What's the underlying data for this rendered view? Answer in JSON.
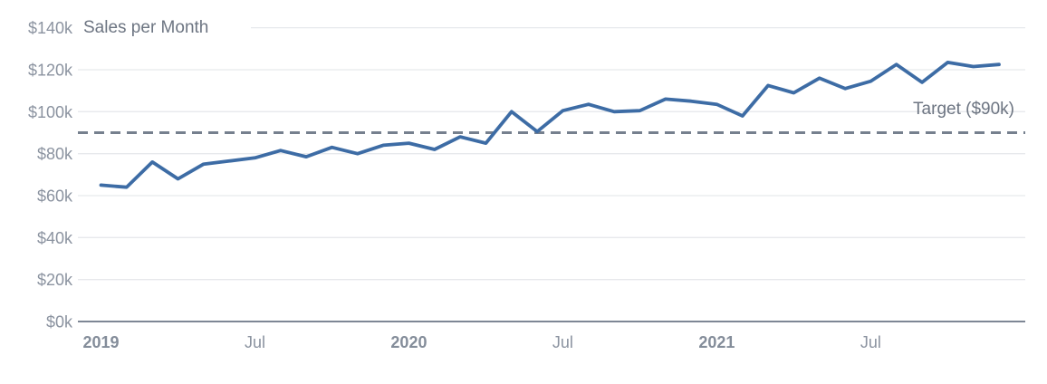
{
  "chart_data": {
    "type": "line",
    "title": "Sales per Month",
    "xlabel": "",
    "ylabel": "",
    "ylim": [
      0,
      140
    ],
    "grid": true,
    "legend": "none",
    "y_ticks": [
      {
        "value": 0,
        "label": "$0k"
      },
      {
        "value": 20,
        "label": "$20k"
      },
      {
        "value": 40,
        "label": "$40k"
      },
      {
        "value": 60,
        "label": "$60k"
      },
      {
        "value": 80,
        "label": "$80k"
      },
      {
        "value": 100,
        "label": "$100k"
      },
      {
        "value": 120,
        "label": "$120k"
      },
      {
        "value": 140,
        "label": "$140k"
      }
    ],
    "x_ticks": [
      {
        "month_index": 0,
        "label": "2019",
        "bold": true
      },
      {
        "month_index": 6,
        "label": "Jul",
        "bold": false
      },
      {
        "month_index": 12,
        "label": "2020",
        "bold": true
      },
      {
        "month_index": 18,
        "label": "Jul",
        "bold": false
      },
      {
        "month_index": 24,
        "label": "2021",
        "bold": true
      },
      {
        "month_index": 30,
        "label": "Jul",
        "bold": false
      }
    ],
    "months": [
      "Jan 2019",
      "Feb 2019",
      "Mar 2019",
      "Apr 2019",
      "May 2019",
      "Jun 2019",
      "Jul 2019",
      "Aug 2019",
      "Sep 2019",
      "Oct 2019",
      "Nov 2019",
      "Dec 2019",
      "Jan 2020",
      "Feb 2020",
      "Mar 2020",
      "Apr 2020",
      "May 2020",
      "Jun 2020",
      "Jul 2020",
      "Aug 2020",
      "Sep 2020",
      "Oct 2020",
      "Nov 2020",
      "Dec 2020",
      "Jan 2021",
      "Feb 2021",
      "Mar 2021",
      "Apr 2021",
      "May 2021",
      "Jun 2021",
      "Jul 2021",
      "Aug 2021",
      "Sep 2021",
      "Oct 2021",
      "Nov 2021",
      "Dec 2021"
    ],
    "series": [
      {
        "name": "Sales",
        "color": "#3d6ca5",
        "values": [
          65,
          64,
          76,
          68,
          75,
          76.5,
          78,
          81.5,
          78.5,
          83,
          80,
          84,
          85,
          82,
          88,
          85,
          100,
          90.5,
          100.5,
          103.5,
          100,
          100.5,
          106,
          105,
          103.5,
          98,
          112.5,
          109,
          116,
          111,
          114.5,
          122.5,
          114,
          123.5,
          121.5,
          122.5
        ]
      }
    ],
    "target": {
      "label": "Target ($90k)",
      "value": 90,
      "style": "dashed",
      "color": "#76808e"
    },
    "colors": {
      "line": "#3d6ca5",
      "gridline": "#e7e9ec",
      "axis_line": "#7e8795",
      "tick_label": "#8b93a0",
      "year_label": "#848d9a",
      "title_text": "#6d7582",
      "target_line": "#76808e",
      "background": "#ffffff"
    }
  }
}
